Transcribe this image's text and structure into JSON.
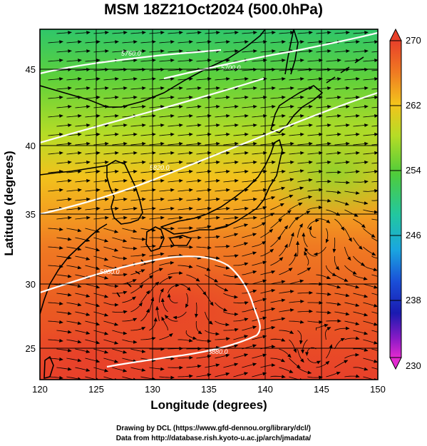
{
  "title": "MSM 18Z21Oct2024 (500.0hPa)",
  "x_axis": {
    "label": "Longitude (degrees)",
    "ticks": [
      "120",
      "125",
      "130",
      "135",
      "140",
      "145",
      "150"
    ],
    "range": [
      120,
      150
    ]
  },
  "y_axis": {
    "label": "Latitude  (degrees)",
    "ticks": [
      "25",
      "30",
      "35",
      "40",
      "45"
    ],
    "range": [
      22.4,
      47.6
    ]
  },
  "colorbar": {
    "ticks": [
      "270",
      "262",
      "254",
      "246",
      "238",
      "230"
    ],
    "range": [
      230,
      270
    ]
  },
  "contours": [
    {
      "label": "5880.0"
    },
    {
      "label": "5760.0"
    },
    {
      "label": "5700.0"
    },
    {
      "label": "5820.0"
    },
    {
      "label": "5880.0"
    }
  ],
  "credits": {
    "line1": "Drawing by DCL (https://www.gfd-dennou.org/library/dcl/)",
    "line2": "Data from http://database.rish.kyoto-u.ac.jp/arch/jmadata/"
  }
}
